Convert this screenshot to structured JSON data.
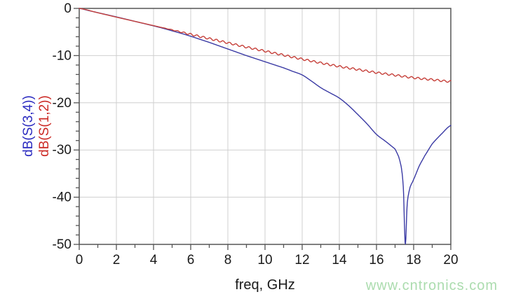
{
  "watermark": {
    "text": "www.cntronics.com",
    "color": "#abdcae"
  },
  "chart_data": {
    "type": "line",
    "title": "",
    "xlabel": "freq, GHz",
    "ylabel_lines": [
      {
        "text": "dB(S(3,4))",
        "color": "#2b2bc0"
      },
      {
        "text": "dB(S(1,2))",
        "color": "#cc2a25"
      }
    ],
    "xlim": [
      0,
      20
    ],
    "ylim": [
      -50,
      0
    ],
    "grid": true,
    "legend_position": "left-axis-rotated",
    "colors": {
      "grid": "#cfcfcf",
      "frame": "#555555",
      "tick_text": "#1a1a1a"
    },
    "x_ticks": {
      "values": [
        0,
        2,
        4,
        6,
        8,
        10,
        12,
        14,
        16,
        18,
        20
      ],
      "labels": [
        "0",
        "2",
        "4",
        "6",
        "8",
        "10",
        "12",
        "14",
        "16",
        "18",
        "20"
      ],
      "minor_step": 1
    },
    "y_ticks": {
      "values": [
        0,
        -10,
        -20,
        -30,
        -40,
        -50
      ],
      "labels": [
        "0",
        "-10",
        "-20",
        "-30",
        "-40",
        "-50"
      ],
      "minor_step": 2
    },
    "series": [
      {
        "name": "dB(S(3,4))",
        "color": "#3a3aa4",
        "x": [
          0,
          0.5,
          1,
          1.5,
          2,
          2.5,
          3,
          3.5,
          4,
          4.5,
          5,
          5.5,
          6,
          6.5,
          7,
          7.5,
          8,
          8.5,
          9,
          9.5,
          10,
          10.5,
          11,
          11.5,
          12,
          12.5,
          13,
          13.5,
          14,
          14.5,
          15,
          15.5,
          16,
          16.5,
          17,
          17.2,
          17.35,
          17.45,
          17.55,
          17.65,
          17.8,
          18,
          18.3,
          18.6,
          19,
          19.5,
          20
        ],
        "y": [
          0,
          -0.45,
          -0.9,
          -1.35,
          -1.8,
          -2.27,
          -2.75,
          -3.22,
          -3.7,
          -4.2,
          -4.75,
          -5.3,
          -5.9,
          -6.55,
          -7.2,
          -7.9,
          -8.6,
          -9.3,
          -10.0,
          -10.65,
          -11.3,
          -11.95,
          -12.6,
          -13.35,
          -14.1,
          -15.4,
          -16.8,
          -17.9,
          -19.0,
          -20.6,
          -22.5,
          -24.5,
          -26.7,
          -28.2,
          -29.8,
          -31.5,
          -34.0,
          -38.5,
          -50,
          -41.5,
          -38.0,
          -36.2,
          -33.4,
          -31.2,
          -28.7,
          -26.6,
          -24.8
        ]
      },
      {
        "name": "dB(S(1,2))",
        "color": "#c6403a",
        "x": [
          0,
          1,
          2,
          3,
          4,
          5,
          6,
          7,
          8,
          9,
          10,
          11,
          12,
          13,
          14,
          15,
          16,
          17,
          18,
          19,
          20
        ],
        "y": [
          0,
          -0.92,
          -1.85,
          -2.75,
          -3.65,
          -4.55,
          -5.5,
          -6.4,
          -7.3,
          -8.2,
          -9.05,
          -9.9,
          -10.75,
          -11.55,
          -12.3,
          -12.95,
          -13.6,
          -14.15,
          -14.7,
          -15.1,
          -15.5
        ],
        "ripple": {
          "start_x": 4.5,
          "amplitude": 0.2,
          "period": 0.35,
          "fade_in": 1.5
        }
      }
    ]
  }
}
